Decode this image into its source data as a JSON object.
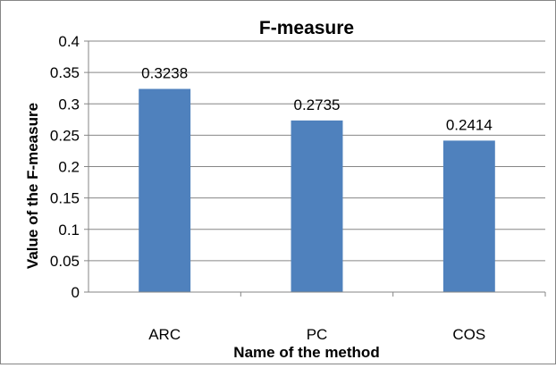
{
  "chart_data": {
    "type": "bar",
    "title": "F-measure",
    "xlabel": "Name of the method",
    "ylabel": "Value of the F-measure",
    "categories": [
      "ARC",
      "PC",
      "COS"
    ],
    "values": [
      0.3238,
      0.2735,
      0.2414
    ],
    "data_labels": [
      "0.3238",
      "0.2735",
      "0.2414"
    ],
    "y_ticks": [
      0,
      0.05,
      0.1,
      0.15,
      0.2,
      0.25,
      0.3,
      0.35,
      0.4
    ],
    "y_tick_labels": [
      "0",
      "0.05",
      "0.1",
      "0.15",
      "0.2",
      "0.25",
      "0.3",
      "0.35",
      "0.4"
    ],
    "ylim": [
      0,
      0.4
    ],
    "grid": true,
    "legend": "none",
    "colors": {
      "bar": "#4F81BD",
      "grid": "#868686",
      "axis": "#868686",
      "border": "#868686"
    }
  }
}
